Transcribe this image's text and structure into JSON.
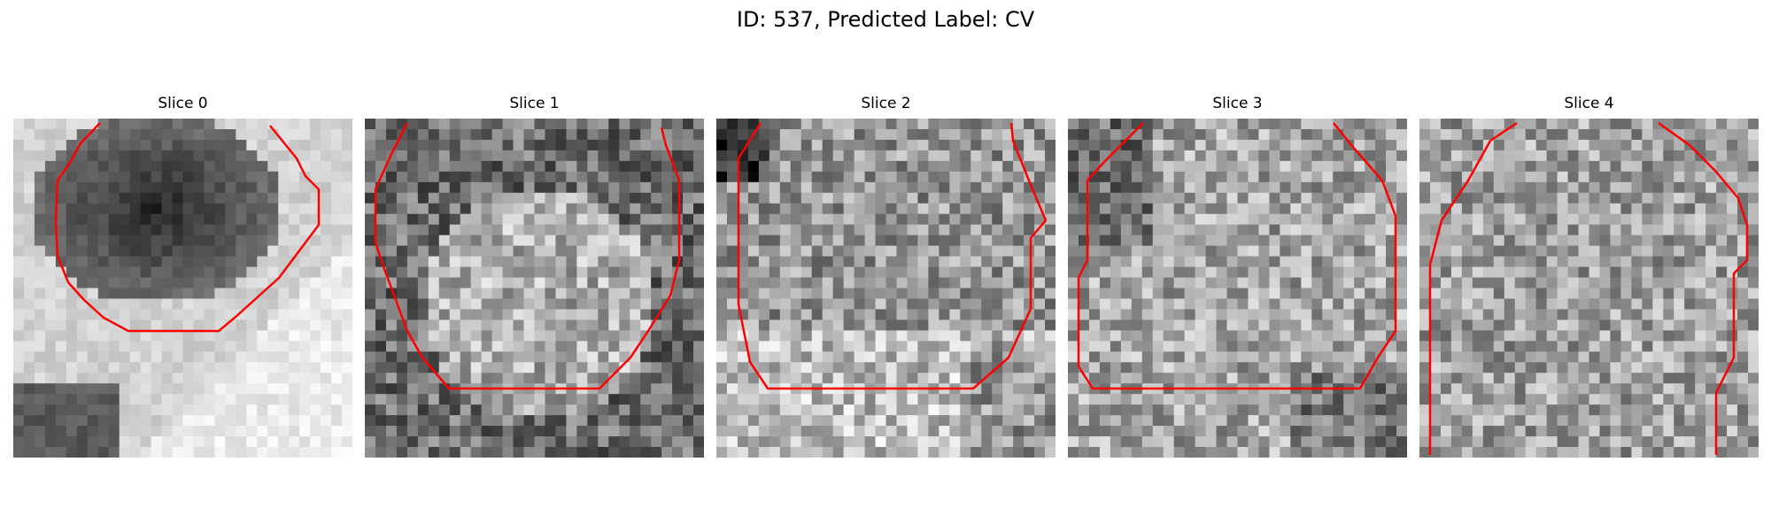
{
  "figure": {
    "title": "ID: 537, Predicted Label: CV"
  },
  "slices": [
    {
      "label": "Slice 0"
    },
    {
      "label": "Slice 1"
    },
    {
      "label": "Slice 2"
    },
    {
      "label": "Slice 3"
    },
    {
      "label": "Slice 4"
    }
  ],
  "colors": {
    "contour": "#ff0000",
    "background": "#ffffff"
  }
}
